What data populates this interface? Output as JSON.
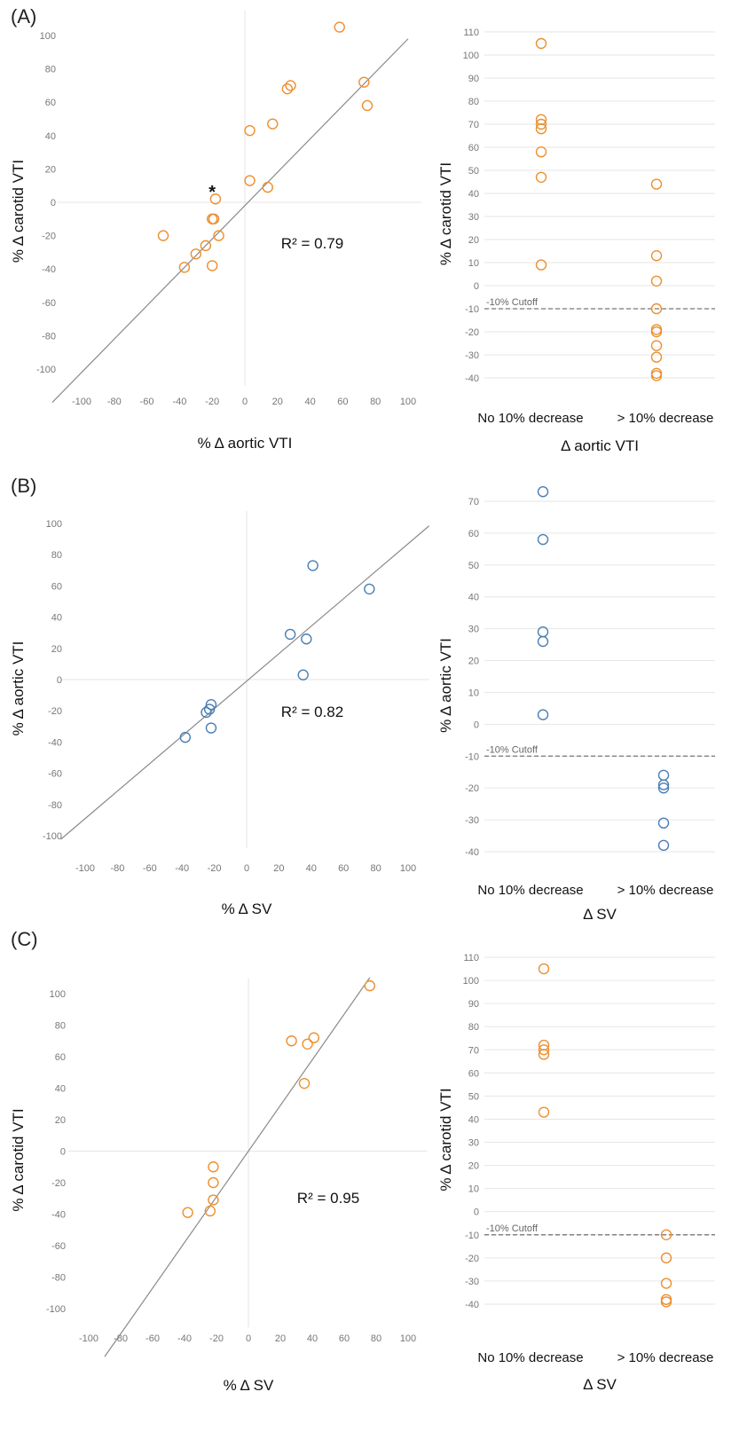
{
  "colors": {
    "orange": "#ED8F2F",
    "blue": "#4A7FB5",
    "line": "#8A8A8A",
    "grid": "#E6E6E6",
    "cutoff": "#777777"
  },
  "panels": [
    {
      "label": "(A)",
      "r2": "R² = 0.79",
      "star": "*"
    },
    {
      "label": "(B)",
      "r2": "R² = 0.82"
    },
    {
      "label": "(C)",
      "r2": "R² = 0.95"
    }
  ],
  "chart_data": [
    {
      "type": "scatter",
      "panel": "(A)",
      "xlabel": "% Δ aortic VTI",
      "ylabel": "% Δ carotid VTI",
      "annotation": "R² = 0.79",
      "marker": "*",
      "xticks": [
        -100,
        -80,
        -60,
        -40,
        -20,
        0,
        20,
        40,
        60,
        80,
        100
      ],
      "yticks": [
        -100,
        -80,
        -60,
        -40,
        -20,
        0,
        20,
        40,
        60,
        80,
        100
      ],
      "xlim": [
        -115,
        108
      ],
      "ylim": [
        -110,
        115
      ],
      "color": "orange",
      "points": [
        [
          58,
          105
        ],
        [
          28,
          70
        ],
        [
          26,
          68
        ],
        [
          73,
          72
        ],
        [
          75,
          58
        ],
        [
          17,
          47
        ],
        [
          3,
          43
        ],
        [
          3,
          13
        ],
        [
          14,
          9
        ],
        [
          -18,
          2
        ],
        [
          -19,
          -10
        ],
        [
          -20,
          -10
        ],
        [
          -16,
          -20
        ],
        [
          -50,
          -20
        ],
        [
          -24,
          -26
        ],
        [
          -30,
          -31
        ],
        [
          -20,
          -38
        ],
        [
          -37,
          -39
        ]
      ],
      "fit_line": {
        "slope": 1.0,
        "intercept": -2
      }
    },
    {
      "type": "scatter",
      "panel": "(A)",
      "xlabel": "Δ aortic VTI",
      "ylabel": "% Δ carotid VTI",
      "categories": [
        "No 10% decrease",
        "> 10% decrease"
      ],
      "yticks": [
        -40,
        -30,
        -20,
        -10,
        0,
        10,
        20,
        30,
        40,
        50,
        60,
        70,
        80,
        90,
        100,
        110
      ],
      "ylim": [
        -45,
        113
      ],
      "cutoff": {
        "value": -10,
        "label": "-10% Cutoff"
      },
      "color": "orange",
      "series": [
        {
          "values": [
            105,
            72,
            70,
            68,
            58,
            47,
            9
          ]
        },
        {
          "values": [
            44,
            13,
            2,
            -10,
            -19,
            -20,
            -26,
            -31,
            -38,
            -39
          ]
        }
      ]
    },
    {
      "type": "scatter",
      "panel": "(B)",
      "xlabel": "% Δ SV",
      "ylabel": "% Δ aortic VTI",
      "annotation": "R² = 0.82",
      "xticks": [
        -100,
        -80,
        -60,
        -40,
        -20,
        0,
        20,
        40,
        60,
        80,
        100
      ],
      "yticks": [
        -100,
        -80,
        -60,
        -40,
        -20,
        0,
        20,
        40,
        60,
        80,
        100
      ],
      "xlim": [
        -115,
        113
      ],
      "ylim": [
        -108,
        108
      ],
      "color": "blue",
      "points": [
        [
          41,
          73
        ],
        [
          76,
          58
        ],
        [
          27,
          29
        ],
        [
          37,
          26
        ],
        [
          35,
          3
        ],
        [
          -22,
          -16
        ],
        [
          -23,
          -19
        ],
        [
          -25,
          -21
        ],
        [
          -22,
          -31
        ],
        [
          -38,
          -37
        ]
      ],
      "fit_line": {
        "slope": 0.88,
        "intercept": -1
      }
    },
    {
      "type": "scatter",
      "panel": "(B)",
      "xlabel": "Δ SV",
      "ylabel": "% Δ aortic VTI",
      "categories": [
        "No 10% decrease",
        "> 10% decrease"
      ],
      "yticks": [
        -40,
        -30,
        -20,
        -10,
        0,
        10,
        20,
        30,
        40,
        50,
        60,
        70
      ],
      "ylim": [
        -45,
        74
      ],
      "cutoff": {
        "value": -10,
        "label": "-10% Cutoff"
      },
      "color": "blue",
      "series": [
        {
          "values": [
            73,
            58,
            29,
            26,
            3
          ]
        },
        {
          "values": [
            -16,
            -19,
            -20,
            -31,
            -38
          ]
        }
      ]
    },
    {
      "type": "scatter",
      "panel": "(C)",
      "xlabel": "% Δ SV",
      "ylabel": "% Δ carotid VTI",
      "annotation": "R² = 0.95",
      "xticks": [
        -100,
        -80,
        -60,
        -40,
        -20,
        0,
        20,
        40,
        60,
        80,
        100
      ],
      "yticks": [
        -100,
        -80,
        -60,
        -40,
        -20,
        0,
        20,
        40,
        60,
        80,
        100
      ],
      "xlim": [
        -113,
        112
      ],
      "ylim": [
        -112,
        110
      ],
      "color": "orange",
      "points": [
        [
          76,
          105
        ],
        [
          27,
          70
        ],
        [
          37,
          68
        ],
        [
          41,
          72
        ],
        [
          35,
          43
        ],
        [
          -22,
          -10
        ],
        [
          -22,
          -20
        ],
        [
          -22,
          -31
        ],
        [
          -24,
          -38
        ],
        [
          -38,
          -39
        ]
      ],
      "fit_line": {
        "slope": 1.45,
        "intercept": 0
      }
    },
    {
      "type": "scatter",
      "panel": "(C)",
      "xlabel": "Δ SV",
      "ylabel": "% Δ carotid VTI",
      "categories": [
        "No 10% decrease",
        "> 10% decrease"
      ],
      "yticks": [
        -40,
        -30,
        -20,
        -10,
        0,
        10,
        20,
        30,
        40,
        50,
        60,
        70,
        80,
        90,
        100,
        110
      ],
      "ylim": [
        -45,
        113
      ],
      "cutoff": {
        "value": -10,
        "label": "-10% Cutoff"
      },
      "color": "orange",
      "series": [
        {
          "values": [
            105,
            72,
            70,
            68,
            43
          ]
        },
        {
          "values": [
            -10,
            -20,
            -31,
            -38,
            -39
          ]
        }
      ]
    }
  ]
}
